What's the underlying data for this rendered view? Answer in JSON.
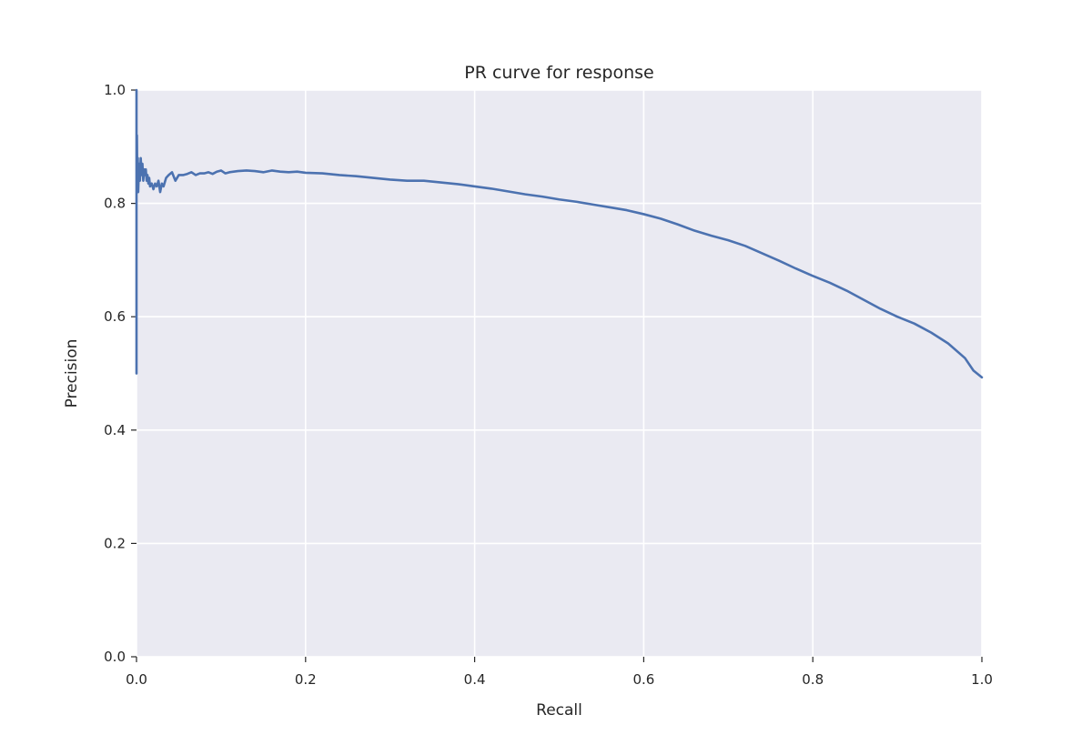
{
  "chart_data": {
    "type": "line",
    "title": "PR curve for response",
    "xlabel": "Recall",
    "ylabel": "Precision",
    "xlim": [
      0.0,
      1.0
    ],
    "ylim": [
      0.0,
      1.0
    ],
    "xticks": [
      "0.0",
      "0.2",
      "0.4",
      "0.6",
      "0.8",
      "1.0"
    ],
    "yticks": [
      "0.0",
      "0.2",
      "0.4",
      "0.6",
      "0.8",
      "1.0"
    ],
    "grid": true,
    "colors": {
      "background": "#eaeaf2",
      "grid": "#ffffff",
      "line": "#4c72b0"
    },
    "series": [
      {
        "x": [
          0.0,
          0.0,
          0.0,
          0.0005,
          0.001,
          0.0015,
          0.002,
          0.003,
          0.004,
          0.005,
          0.006,
          0.007,
          0.008,
          0.009,
          0.01,
          0.011,
          0.012,
          0.013,
          0.014,
          0.015,
          0.016,
          0.018,
          0.02,
          0.022,
          0.024,
          0.026,
          0.028,
          0.03,
          0.032,
          0.035,
          0.038,
          0.042,
          0.046,
          0.05,
          0.055,
          0.06,
          0.065,
          0.07,
          0.075,
          0.08,
          0.085,
          0.09,
          0.095,
          0.1,
          0.105,
          0.11,
          0.12,
          0.13,
          0.14,
          0.15,
          0.16,
          0.17,
          0.18,
          0.19,
          0.2,
          0.22,
          0.24,
          0.26,
          0.28,
          0.3,
          0.32,
          0.34,
          0.36,
          0.38,
          0.4,
          0.42,
          0.44,
          0.46,
          0.48,
          0.5,
          0.52,
          0.54,
          0.56,
          0.58,
          0.6,
          0.62,
          0.64,
          0.66,
          0.68,
          0.7,
          0.72,
          0.74,
          0.76,
          0.78,
          0.8,
          0.82,
          0.84,
          0.86,
          0.88,
          0.9,
          0.92,
          0.94,
          0.96,
          0.98,
          0.99,
          1.0
        ],
        "y": [
          0.5,
          1.0,
          0.82,
          0.92,
          0.83,
          0.88,
          0.82,
          0.87,
          0.84,
          0.88,
          0.85,
          0.87,
          0.84,
          0.86,
          0.85,
          0.86,
          0.84,
          0.85,
          0.835,
          0.845,
          0.83,
          0.835,
          0.825,
          0.835,
          0.83,
          0.84,
          0.82,
          0.835,
          0.83,
          0.845,
          0.85,
          0.855,
          0.84,
          0.85,
          0.85,
          0.852,
          0.855,
          0.85,
          0.853,
          0.853,
          0.855,
          0.852,
          0.856,
          0.858,
          0.853,
          0.855,
          0.857,
          0.858,
          0.857,
          0.855,
          0.858,
          0.856,
          0.855,
          0.856,
          0.854,
          0.853,
          0.85,
          0.848,
          0.845,
          0.842,
          0.84,
          0.84,
          0.837,
          0.834,
          0.83,
          0.826,
          0.821,
          0.816,
          0.812,
          0.807,
          0.803,
          0.798,
          0.793,
          0.788,
          0.781,
          0.773,
          0.763,
          0.752,
          0.743,
          0.735,
          0.725,
          0.712,
          0.699,
          0.685,
          0.672,
          0.66,
          0.646,
          0.63,
          0.614,
          0.6,
          0.588,
          0.572,
          0.553,
          0.527,
          0.505,
          0.493
        ]
      }
    ]
  }
}
